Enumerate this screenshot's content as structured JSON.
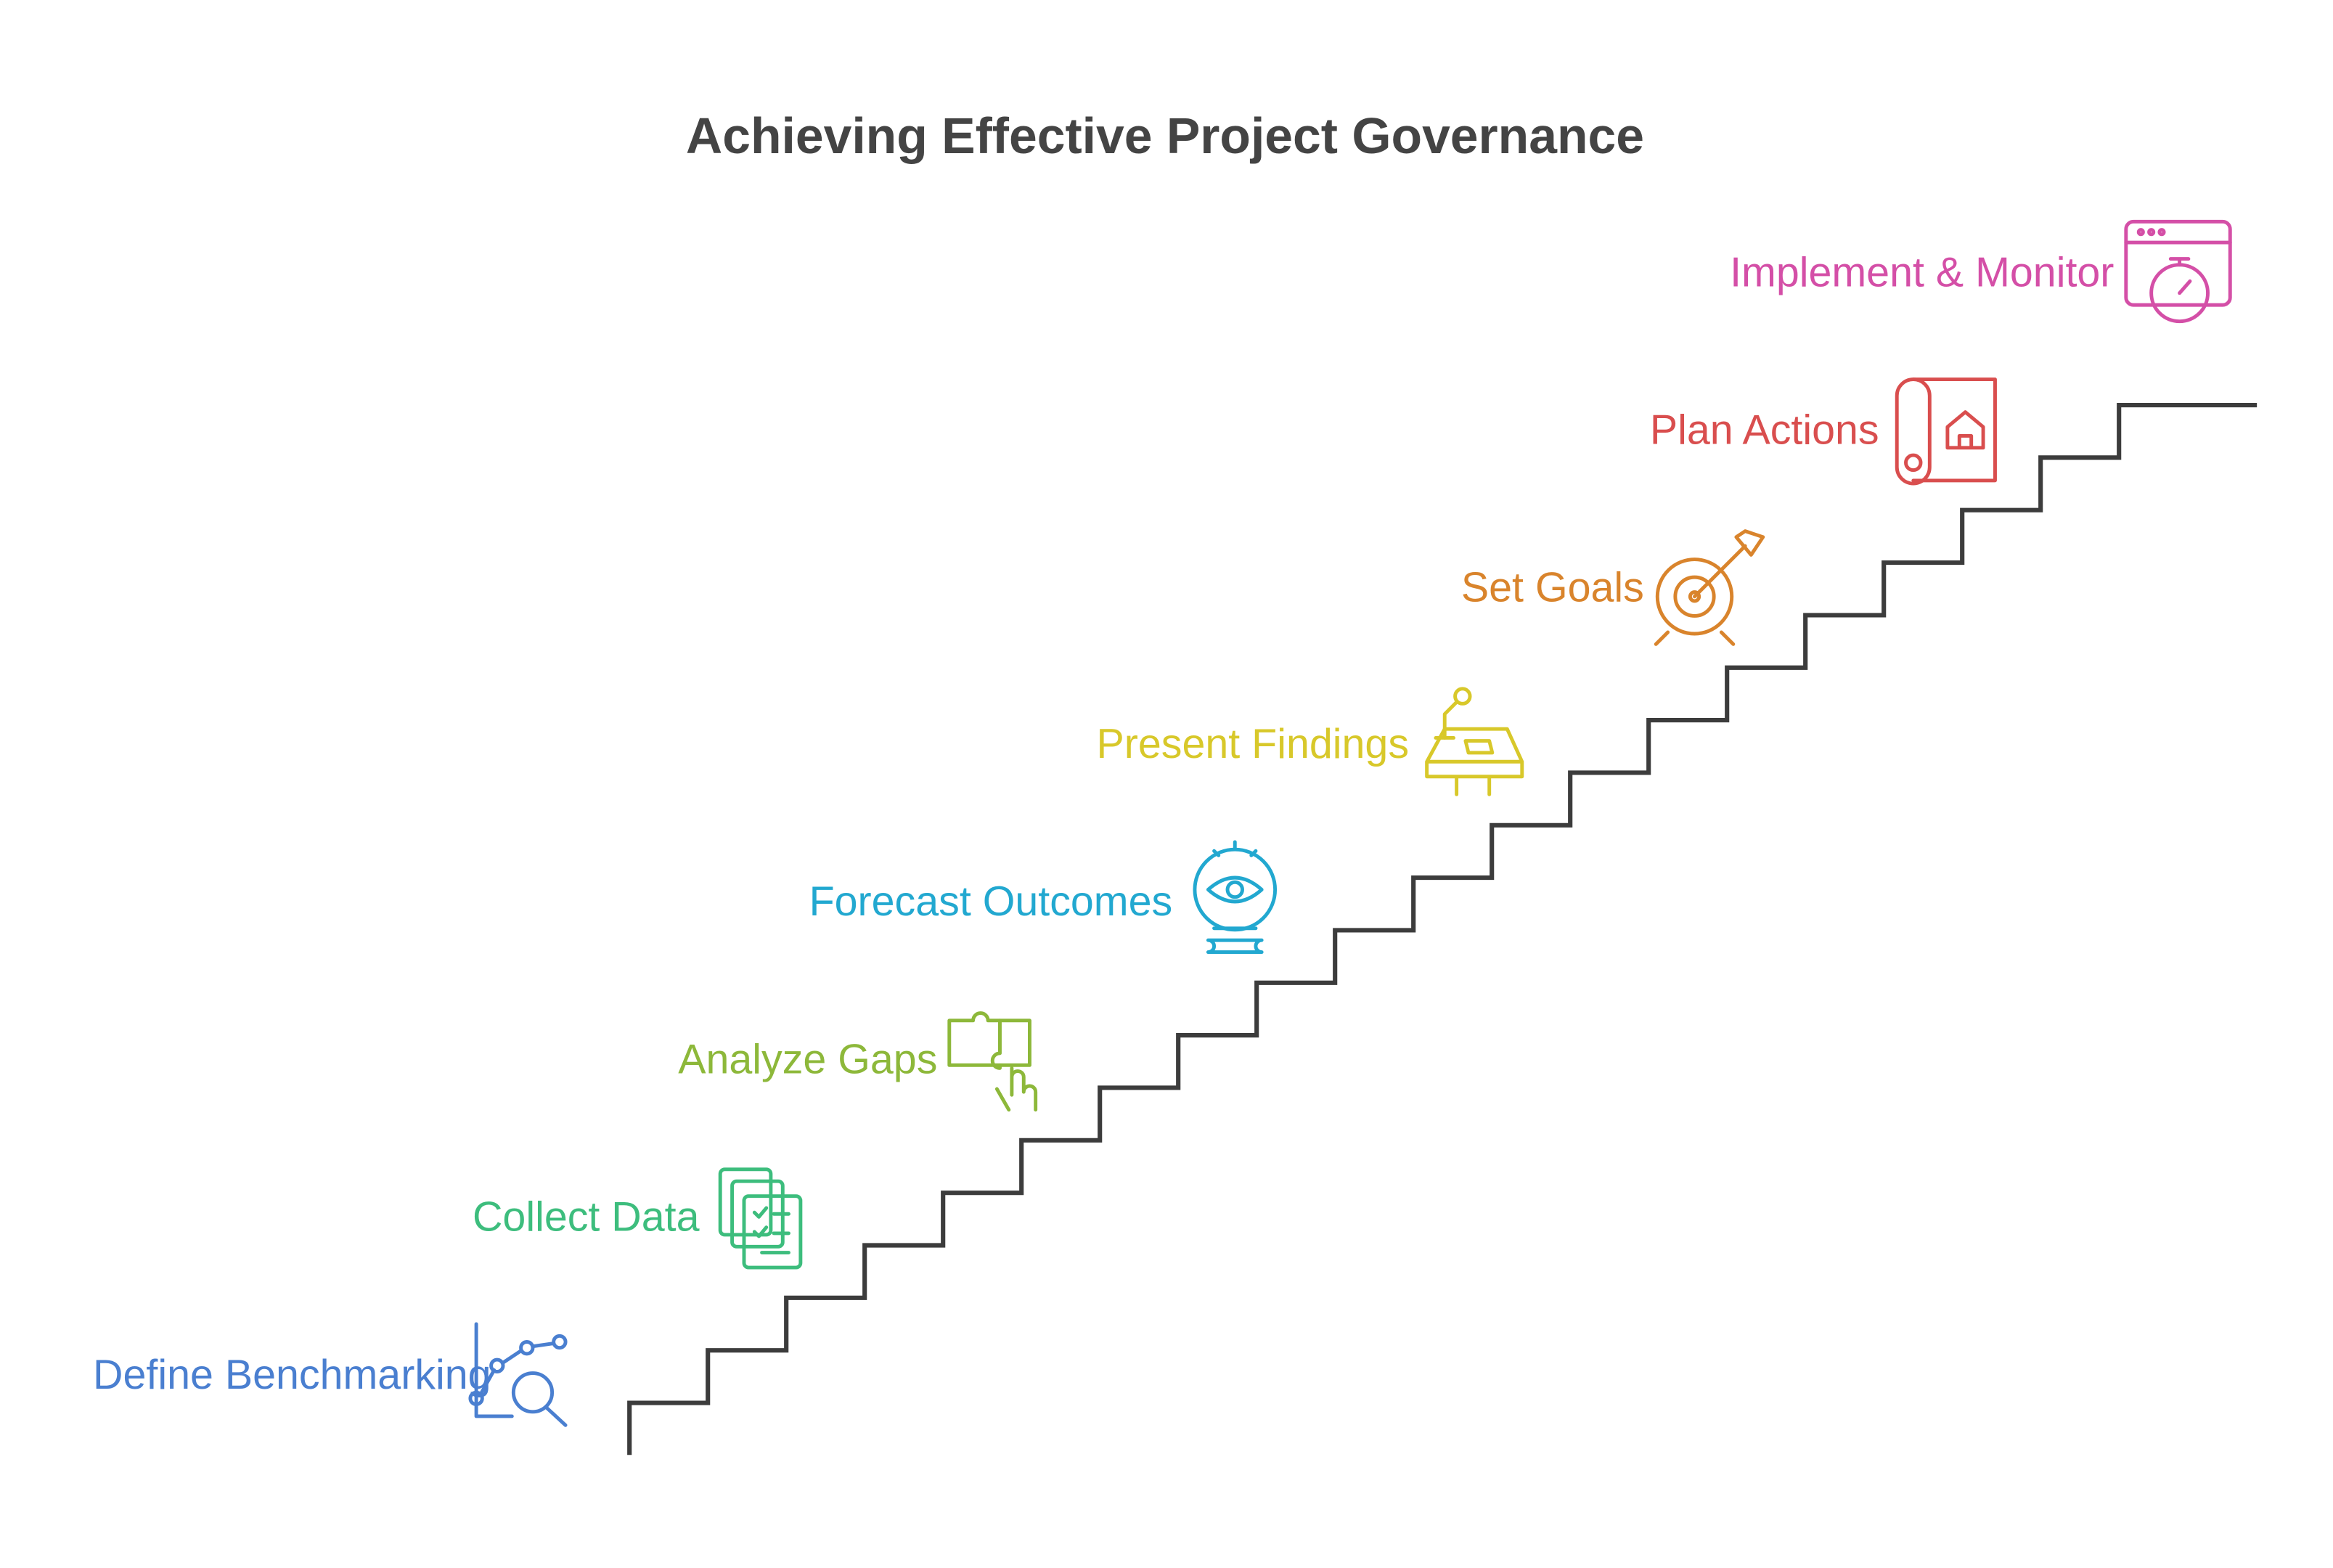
{
  "header": {
    "title": "Achieving Effective Project Governance"
  },
  "steps": [
    {
      "label": "Define Benchmarking"
    },
    {
      "label": "Collect Data"
    },
    {
      "label": "Analyze Gaps"
    },
    {
      "label": "Forecast Outcomes"
    },
    {
      "label": "Present Findings"
    },
    {
      "label": "Set Goals"
    },
    {
      "label": "Plan Actions"
    },
    {
      "label": "Implement & Monitor"
    }
  ]
}
